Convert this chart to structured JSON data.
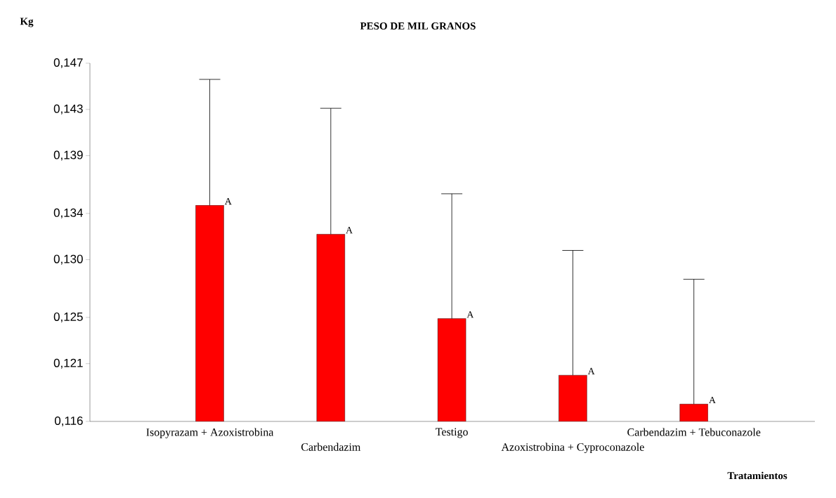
{
  "chart_data": {
    "type": "bar",
    "title": "PESO DE MIL GRANOS",
    "xlabel": "Tratamientos",
    "ylabel": "Kg",
    "categories": [
      "Isopyrazam + Azoxistrobina",
      "Carbendazim",
      "Testigo",
      "Azoxistrobina + Cyproconazole",
      "Carbendazim + Tebuconazole"
    ],
    "values": [
      0.1347,
      0.1322,
      0.1249,
      0.12,
      0.1175
    ],
    "errors": [
      [
        0.1347,
        0.1456
      ],
      [
        0.1322,
        0.1431
      ],
      [
        0.1249,
        0.1357
      ],
      [
        0.12,
        0.1308
      ],
      [
        0.1175,
        0.1283
      ]
    ],
    "value_labels": [
      "A",
      "A",
      "A",
      "A",
      "A"
    ],
    "color": "#ff0000",
    "ylim": [
      0.116,
      0.147
    ],
    "yticks": [
      {
        "value": 0.116,
        "label": "0,116"
      },
      {
        "value": 0.121,
        "label": "0,121"
      },
      {
        "value": 0.125,
        "label": "0,125"
      },
      {
        "value": 0.13,
        "label": "0,130"
      },
      {
        "value": 0.134,
        "label": "0,134"
      },
      {
        "value": 0.139,
        "label": "0,139"
      },
      {
        "value": 0.143,
        "label": "0,143"
      },
      {
        "value": 0.147,
        "label": "0,147"
      }
    ]
  }
}
